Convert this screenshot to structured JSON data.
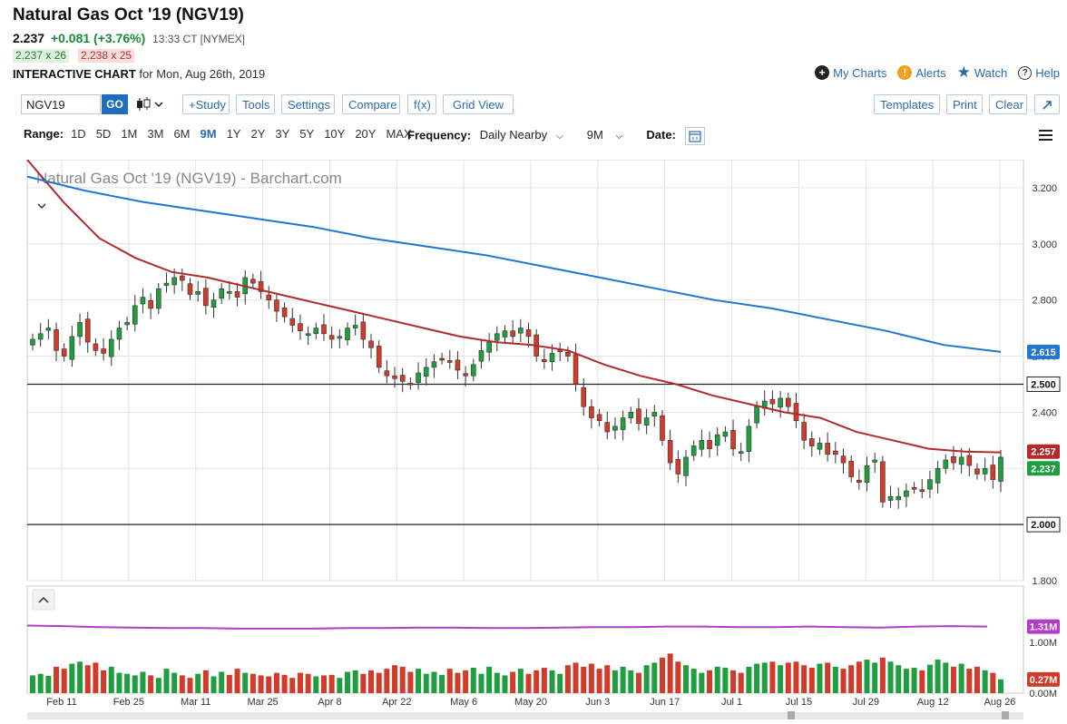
{
  "header": {
    "title": "Natural Gas Oct '19 (NGV19)",
    "last": "2.237",
    "change": "+0.081 (+3.76%)",
    "time": "13:33 CT [NYMEX]",
    "bid": "2.237 x 26",
    "ask": "2.238 x 25",
    "interactive_label": "INTERACTIVE CHART",
    "interactive_date": "for Mon, Aug 26th, 2019"
  },
  "top_links": {
    "my_charts": "My Charts",
    "alerts": "Alerts",
    "watch": "Watch",
    "help": "Help"
  },
  "toolbar": {
    "symbol_value": "NGV19",
    "go": "GO",
    "study": "+Study",
    "tools": "Tools",
    "settings": "Settings",
    "compare": "Compare",
    "fx": "f(x)",
    "grid_view": "Grid View",
    "templates": "Templates",
    "print": "Print",
    "clear": "Clear"
  },
  "range": {
    "label": "Range:",
    "options": [
      "1D",
      "5D",
      "1M",
      "3M",
      "6M",
      "9M",
      "1Y",
      "2Y",
      "3Y",
      "5Y",
      "10Y",
      "20Y",
      "MAX"
    ],
    "active": "9M",
    "frequency_label": "Frequency:",
    "frequency_value": "Daily Nearby",
    "period_value": "9M",
    "date_label": "Date:"
  },
  "colors": {
    "up": "#1e9e3e",
    "down": "#d23a2a",
    "ma_red": "#b22a2a",
    "ma_blue": "#1f77d0",
    "volume_avg": "#b43cc8",
    "link": "#2a6bb0"
  },
  "chart_data": {
    "type": "candlestick",
    "title": "Natural Gas Oct '19 (NGV19) - Barchart.com",
    "price_ticks": [
      "3.200",
      "3.000",
      "2.800",
      "2.600",
      "2.400",
      "2.200",
      "2.000",
      "1.800"
    ],
    "ylim": [
      1.8,
      3.3
    ],
    "x_labels": [
      "Feb 11",
      "Feb 25",
      "Mar 11",
      "Mar 25",
      "Apr 8",
      "Apr 22",
      "May 6",
      "May 20",
      "Jun 3",
      "Jun 17",
      "Jul 1",
      "Jul 15",
      "Jul 29",
      "Aug 12",
      "Aug 26"
    ],
    "horizontal_lines": [
      2.5,
      2.0
    ],
    "line_labels": [
      "2.500",
      "2.000"
    ],
    "last_labels": {
      "ma_long": "2.615",
      "ma_short": "2.257",
      "last": "2.237"
    },
    "series": [
      {
        "name": "Daily closes (approx.)",
        "values": [
          2.66,
          2.68,
          2.7,
          2.62,
          2.6,
          2.67,
          2.72,
          2.65,
          2.62,
          2.61,
          2.66,
          2.7,
          2.72,
          2.78,
          2.81,
          2.77,
          2.84,
          2.86,
          2.88,
          2.87,
          2.82,
          2.83,
          2.78,
          2.8,
          2.84,
          2.83,
          2.81,
          2.88,
          2.86,
          2.83,
          2.8,
          2.76,
          2.74,
          2.71,
          2.69,
          2.68,
          2.7,
          2.68,
          2.66,
          2.67,
          2.7,
          2.71,
          2.66,
          2.63,
          2.56,
          2.53,
          2.52,
          2.51,
          2.5,
          2.54,
          2.56,
          2.58,
          2.59,
          2.58,
          2.55,
          2.53,
          2.57,
          2.62,
          2.65,
          2.68,
          2.69,
          2.67,
          2.7,
          2.67,
          2.6,
          2.58,
          2.61,
          2.62,
          2.6,
          2.5,
          2.42,
          2.38,
          2.37,
          2.33,
          2.35,
          2.38,
          2.4,
          2.36,
          2.38,
          2.4,
          2.3,
          2.22,
          2.18,
          2.24,
          2.28,
          2.3,
          2.27,
          2.32,
          2.33,
          2.27,
          2.26,
          2.35,
          2.42,
          2.44,
          2.43,
          2.45,
          2.42,
          2.37,
          2.3,
          2.28,
          2.29,
          2.25,
          2.25,
          2.22,
          2.17,
          2.15,
          2.21,
          2.23,
          2.08,
          2.1,
          2.1,
          2.12,
          2.13,
          2.12,
          2.16,
          2.2,
          2.23,
          2.22,
          2.24,
          2.21,
          2.18,
          2.2,
          2.16,
          2.24
        ]
      },
      {
        "name": "Moving Average (short)",
        "values": [
          3.3,
          3.15,
          3.02,
          2.95,
          2.9,
          2.88,
          2.85,
          2.82,
          2.79,
          2.76,
          2.73,
          2.7,
          2.67,
          2.65,
          2.64,
          2.62,
          2.57,
          2.53,
          2.5,
          2.46,
          2.43,
          2.4,
          2.38,
          2.33,
          2.3,
          2.27,
          2.26,
          2.257
        ]
      },
      {
        "name": "Moving Average (long)",
        "values": [
          3.24,
          3.19,
          3.15,
          3.12,
          3.09,
          3.06,
          3.02,
          2.99,
          2.96,
          2.92,
          2.88,
          2.84,
          2.8,
          2.77,
          2.73,
          2.69,
          2.64,
          2.615
        ]
      }
    ],
    "volume": {
      "ticks": [
        "1.00M",
        "0.00M"
      ],
      "avg_label": "1.31M",
      "last_label": "0.27M",
      "values": [
        0.35,
        0.38,
        0.34,
        0.52,
        0.48,
        0.58,
        0.62,
        0.55,
        0.6,
        0.45,
        0.52,
        0.4,
        0.38,
        0.35,
        0.42,
        0.35,
        0.3,
        0.48,
        0.4,
        0.35,
        0.3,
        0.38,
        0.45,
        0.33,
        0.42,
        0.36,
        0.48,
        0.4,
        0.38,
        0.35,
        0.33,
        0.4,
        0.36,
        0.3,
        0.4,
        0.38,
        0.33,
        0.35,
        0.36,
        0.3,
        0.42,
        0.45,
        0.38,
        0.45,
        0.4,
        0.48,
        0.55,
        0.52,
        0.42,
        0.48,
        0.38,
        0.42,
        0.36,
        0.48,
        0.4,
        0.45,
        0.5,
        0.38,
        0.52,
        0.4,
        0.35,
        0.42,
        0.48,
        0.38,
        0.45,
        0.5,
        0.45,
        0.38,
        0.55,
        0.6,
        0.52,
        0.58,
        0.48,
        0.55,
        0.45,
        0.52,
        0.45,
        0.4,
        0.55,
        0.6,
        0.7,
        0.78,
        0.62,
        0.55,
        0.48,
        0.4,
        0.45,
        0.52,
        0.5,
        0.45,
        0.4,
        0.52,
        0.58,
        0.6,
        0.62,
        0.55,
        0.6,
        0.62,
        0.55,
        0.5,
        0.58,
        0.6,
        0.52,
        0.48,
        0.55,
        0.62,
        0.66,
        0.6,
        0.7,
        0.62,
        0.55,
        0.48,
        0.5,
        0.45,
        0.56,
        0.66,
        0.6,
        0.52,
        0.58,
        0.48,
        0.52,
        0.45,
        0.4,
        0.27
      ],
      "avg_values": [
        1.33,
        1.32,
        1.3,
        1.29,
        1.28,
        1.28,
        1.27,
        1.27,
        1.27,
        1.28,
        1.28,
        1.29,
        1.29,
        1.28,
        1.28,
        1.29,
        1.3,
        1.3,
        1.31,
        1.31,
        1.3,
        1.3,
        1.31,
        1.3,
        1.29,
        1.31,
        1.32,
        1.31
      ]
    }
  }
}
